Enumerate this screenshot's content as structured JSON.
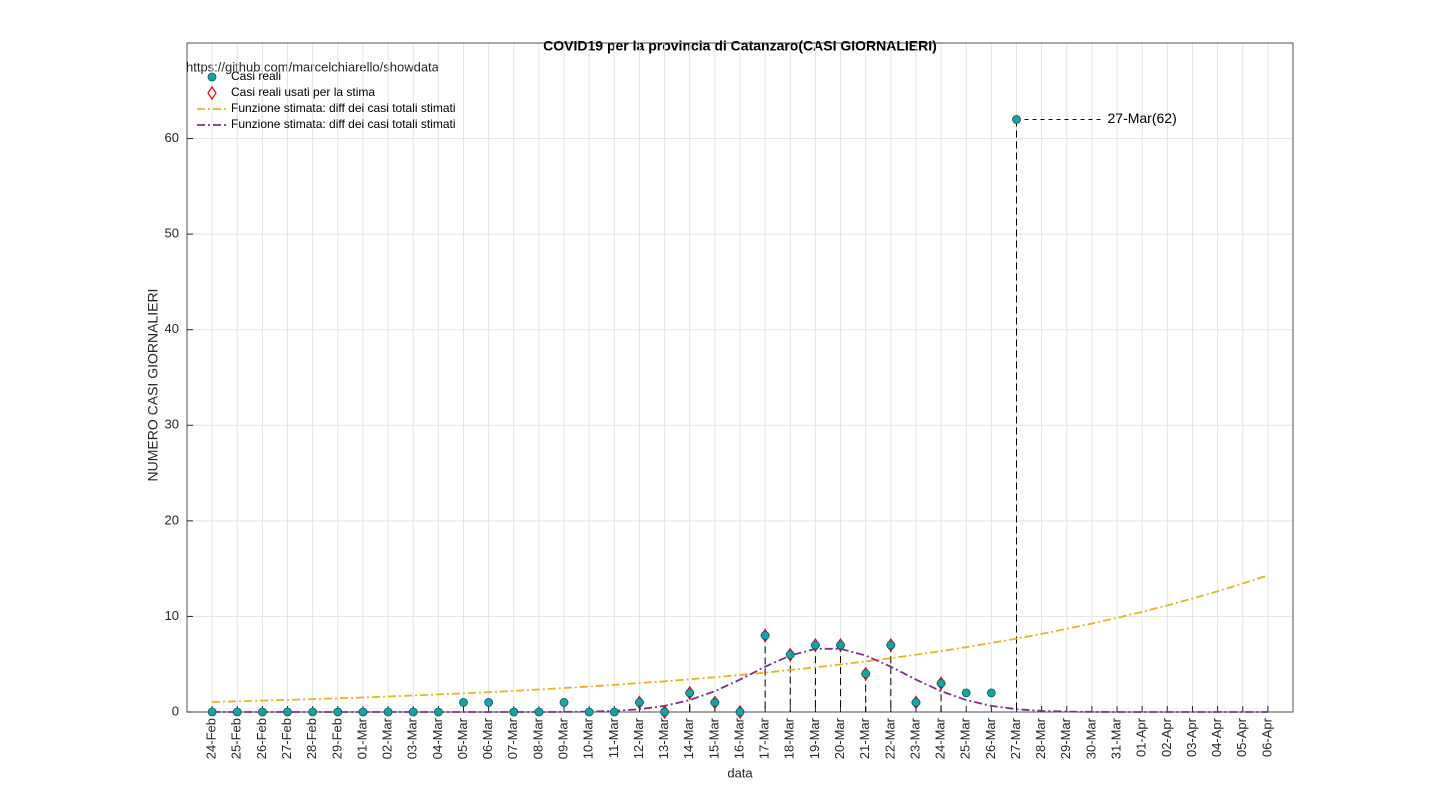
{
  "chart_data": {
    "type": "line",
    "title": "COVID19 per la provincia di Catanzaro(CASI GIORNALIERI)",
    "source": "https://github.com/marcelchiarello/showdata",
    "xlabel": "data",
    "ylabel": "NUMERO CASI GIORNALIERI",
    "annotation": "27-Mar(62)",
    "categories": [
      "24-Feb",
      "25-Feb",
      "26-Feb",
      "27-Feb",
      "28-Feb",
      "29-Feb",
      "01-Mar",
      "02-Mar",
      "03-Mar",
      "04-Mar",
      "05-Mar",
      "06-Mar",
      "07-Mar",
      "08-Mar",
      "09-Mar",
      "10-Mar",
      "11-Mar",
      "12-Mar",
      "13-Mar",
      "14-Mar",
      "15-Mar",
      "16-Mar",
      "17-Mar",
      "18-Mar",
      "19-Mar",
      "20-Mar",
      "21-Mar",
      "22-Mar",
      "23-Mar",
      "24-Mar",
      "25-Mar",
      "26-Mar",
      "27-Mar",
      "28-Mar",
      "29-Mar",
      "30-Mar",
      "31-Mar",
      "01-Apr",
      "02-Apr",
      "03-Apr",
      "04-Apr",
      "05-Apr",
      "06-Apr"
    ],
    "series": [
      {
        "name": "Casi reali",
        "color": "#17a3a6",
        "marker": "circle",
        "values": [
          0,
          0,
          0,
          0,
          0,
          0,
          0,
          0,
          0,
          0,
          1,
          1,
          0,
          0,
          1,
          0,
          0,
          1,
          0,
          2,
          1,
          0,
          8,
          6,
          7,
          7,
          4,
          7,
          1,
          3,
          2,
          2,
          62,
          null,
          null,
          null,
          null,
          null,
          null,
          null,
          null,
          null,
          null
        ]
      },
      {
        "name": "Casi reali usati per la stima",
        "color": "#e8001e",
        "marker": "diamond",
        "values": [
          null,
          null,
          null,
          null,
          null,
          null,
          null,
          null,
          null,
          null,
          null,
          null,
          null,
          null,
          null,
          null,
          null,
          1,
          0,
          2,
          1,
          0,
          8,
          6,
          7,
          7,
          4,
          7,
          1,
          3,
          null,
          null,
          null,
          null,
          null,
          null,
          null,
          null,
          null,
          null,
          null,
          null,
          null
        ]
      },
      {
        "name": "Funzione stimata: diff dei casi totali stimati",
        "color": "#edb120",
        "dash": "8 3 2 3",
        "values": [
          1.05,
          1.12,
          1.19,
          1.27,
          1.35,
          1.43,
          1.52,
          1.62,
          1.73,
          1.84,
          1.95,
          2.08,
          2.21,
          2.35,
          2.51,
          2.67,
          2.84,
          3.02,
          3.21,
          3.42,
          3.64,
          3.87,
          4.12,
          4.39,
          4.67,
          4.97,
          5.29,
          5.63,
          5.99,
          6.37,
          6.78,
          7.22,
          7.68,
          8.17,
          8.7,
          9.26,
          9.85,
          10.48,
          11.15,
          11.87,
          12.63,
          13.44,
          14.3
        ]
      },
      {
        "name": "Funzione stimata: diff dei casi totali stimati",
        "color": "#7e2f8e",
        "dash": "8 3 2 3",
        "values": [
          0,
          0,
          0,
          0,
          0,
          0,
          0,
          0,
          0,
          0,
          0,
          0,
          0,
          0,
          0.01,
          0.04,
          0.12,
          0.29,
          0.64,
          1.25,
          2.18,
          3.39,
          4.74,
          5.91,
          6.61,
          6.61,
          5.91,
          4.74,
          3.39,
          2.18,
          1.25,
          0.64,
          0.29,
          0.12,
          0.04,
          0.01,
          0,
          0,
          0,
          0,
          0,
          0,
          0
        ]
      }
    ],
    "ylim": [
      0,
      70
    ],
    "yticks": [
      0,
      10,
      20,
      30,
      40,
      50,
      60
    ],
    "grid": true,
    "legend": "upper left"
  }
}
